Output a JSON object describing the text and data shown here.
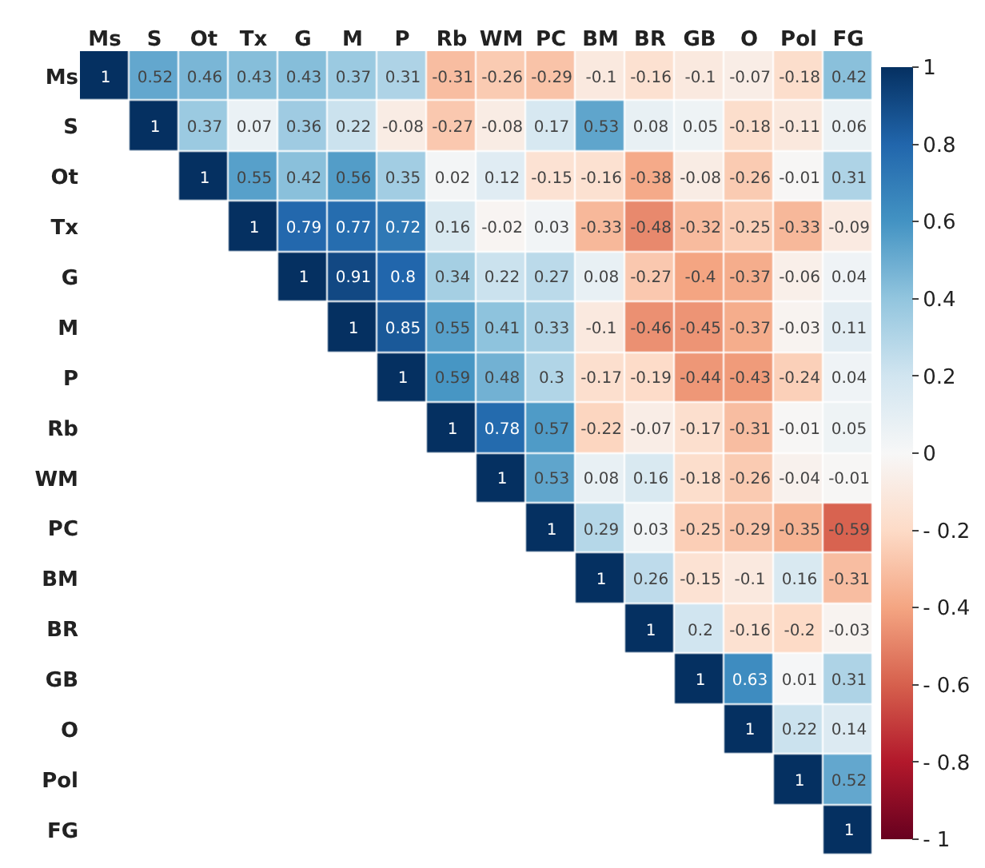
{
  "chart_data": {
    "type": "heatmap",
    "categories": [
      "Ms",
      "S",
      "Ot",
      "Tx",
      "G",
      "M",
      "P",
      "Rb",
      "WM",
      "PC",
      "BM",
      "BR",
      "GB",
      "O",
      "Pol",
      "FG"
    ],
    "y_categories": [
      "Ms",
      "S",
      "Ot",
      "Tx",
      "G",
      "M",
      "P",
      "Rb",
      "WM",
      "PC",
      "BM",
      "BR",
      "GB",
      "O",
      "Pol",
      "FG"
    ],
    "cells": [
      [
        1,
        0.52,
        0.46,
        0.43,
        0.43,
        0.37,
        0.31,
        -0.31,
        -0.26,
        -0.29,
        -0.1,
        -0.16,
        -0.1,
        -0.07,
        -0.18,
        0.42
      ],
      [
        null,
        1,
        0.37,
        0.07,
        0.36,
        0.22,
        -0.08,
        -0.27,
        -0.08,
        0.17,
        0.53,
        0.08,
        0.05,
        -0.18,
        -0.11,
        0.06
      ],
      [
        null,
        null,
        1,
        0.55,
        0.42,
        0.56,
        0.35,
        0.02,
        0.12,
        -0.15,
        -0.16,
        -0.38,
        -0.08,
        -0.26,
        -0.01,
        0.31
      ],
      [
        null,
        null,
        null,
        1,
        0.79,
        0.77,
        0.72,
        0.16,
        -0.02,
        0.03,
        -0.33,
        -0.48,
        -0.32,
        -0.25,
        -0.33,
        -0.09
      ],
      [
        null,
        null,
        null,
        null,
        1,
        0.91,
        0.8,
        0.34,
        0.22,
        0.27,
        0.08,
        -0.27,
        -0.4,
        -0.37,
        -0.06,
        0.04
      ],
      [
        null,
        null,
        null,
        null,
        null,
        1,
        0.85,
        0.55,
        0.41,
        0.33,
        -0.1,
        -0.46,
        -0.45,
        -0.37,
        -0.03,
        0.11
      ],
      [
        null,
        null,
        null,
        null,
        null,
        null,
        1,
        0.59,
        0.48,
        0.3,
        -0.17,
        -0.19,
        -0.44,
        -0.43,
        -0.24,
        0.04
      ],
      [
        null,
        null,
        null,
        null,
        null,
        null,
        null,
        1,
        0.78,
        0.57,
        -0.22,
        -0.07,
        -0.17,
        -0.31,
        -0.01,
        0.05
      ],
      [
        null,
        null,
        null,
        null,
        null,
        null,
        null,
        null,
        1,
        0.53,
        0.08,
        0.16,
        -0.18,
        -0.26,
        -0.04,
        -0.01
      ],
      [
        null,
        null,
        null,
        null,
        null,
        null,
        null,
        null,
        null,
        1,
        0.29,
        0.03,
        -0.25,
        -0.29,
        -0.35,
        -0.59
      ],
      [
        null,
        null,
        null,
        null,
        null,
        null,
        null,
        null,
        null,
        null,
        1,
        0.26,
        -0.15,
        -0.1,
        0.16,
        -0.31
      ],
      [
        null,
        null,
        null,
        null,
        null,
        null,
        null,
        null,
        null,
        null,
        null,
        1,
        0.2,
        -0.16,
        -0.2,
        -0.03
      ],
      [
        null,
        null,
        null,
        null,
        null,
        null,
        null,
        null,
        null,
        null,
        null,
        null,
        1,
        0.63,
        0.01,
        0.31
      ],
      [
        null,
        null,
        null,
        null,
        null,
        null,
        null,
        null,
        null,
        null,
        null,
        null,
        null,
        1,
        0.22,
        0.14
      ],
      [
        null,
        null,
        null,
        null,
        null,
        null,
        null,
        null,
        null,
        null,
        null,
        null,
        null,
        null,
        1,
        0.52
      ],
      [
        null,
        null,
        null,
        null,
        null,
        null,
        null,
        null,
        null,
        null,
        null,
        null,
        null,
        null,
        null,
        1
      ]
    ],
    "data_labels": true,
    "clim": [
      -1,
      1
    ],
    "cticks": [
      1,
      0.8,
      0.6,
      0.4,
      0.2,
      0,
      {
        "value": -0.2,
        "label": "- 0.2"
      },
      {
        "value": -0.4,
        "label": "- 0.4"
      },
      {
        "value": -0.6,
        "label": "- 0.6"
      },
      {
        "value": -0.8,
        "label": "- 0.8"
      },
      {
        "value": -1,
        "label": "- 1"
      }
    ]
  }
}
